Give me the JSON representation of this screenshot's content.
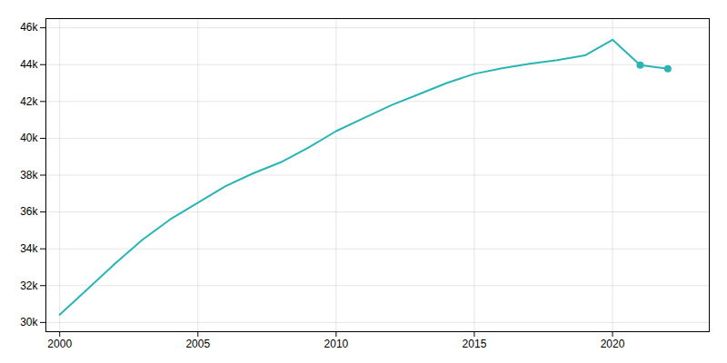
{
  "chart_data": {
    "type": "line",
    "x": [
      2000,
      2001,
      2002,
      2003,
      2004,
      2005,
      2006,
      2007,
      2008,
      2009,
      2010,
      2011,
      2012,
      2013,
      2014,
      2015,
      2016,
      2017,
      2018,
      2019,
      2020,
      2021,
      2022
    ],
    "series": [
      {
        "type": "line",
        "color": "#2ab5b5",
        "values": [
          30426,
          31800,
          33200,
          34500,
          35600,
          36500,
          37400,
          38100,
          38700,
          39500,
          40390,
          41100,
          41800,
          42400,
          43000,
          43500,
          43800,
          44050,
          44250,
          44500,
          45350,
          43980,
          43780
        ]
      },
      {
        "type": "scatter",
        "color": "#2ab5b5",
        "marker": "circle",
        "values": [
          null,
          null,
          null,
          null,
          null,
          null,
          null,
          null,
          null,
          null,
          null,
          null,
          null,
          null,
          null,
          null,
          null,
          null,
          null,
          null,
          null,
          43980,
          43780
        ]
      }
    ],
    "xlim": [
      1999.5,
      2023.5
    ],
    "ylim": [
      29500,
      46500
    ],
    "xticks": [
      2000,
      2005,
      2010,
      2015,
      2020
    ],
    "yticks": [
      {
        "value": 30000,
        "label": "30k"
      },
      {
        "value": 32000,
        "label": "32k"
      },
      {
        "value": 34000,
        "label": "34k"
      },
      {
        "value": 36000,
        "label": "36k"
      },
      {
        "value": 38000,
        "label": "38k"
      },
      {
        "value": 40000,
        "label": "40k"
      },
      {
        "value": 42000,
        "label": "42k"
      },
      {
        "value": 44000,
        "label": "44k"
      },
      {
        "value": 46000,
        "label": "46k"
      }
    ],
    "grid": true
  }
}
